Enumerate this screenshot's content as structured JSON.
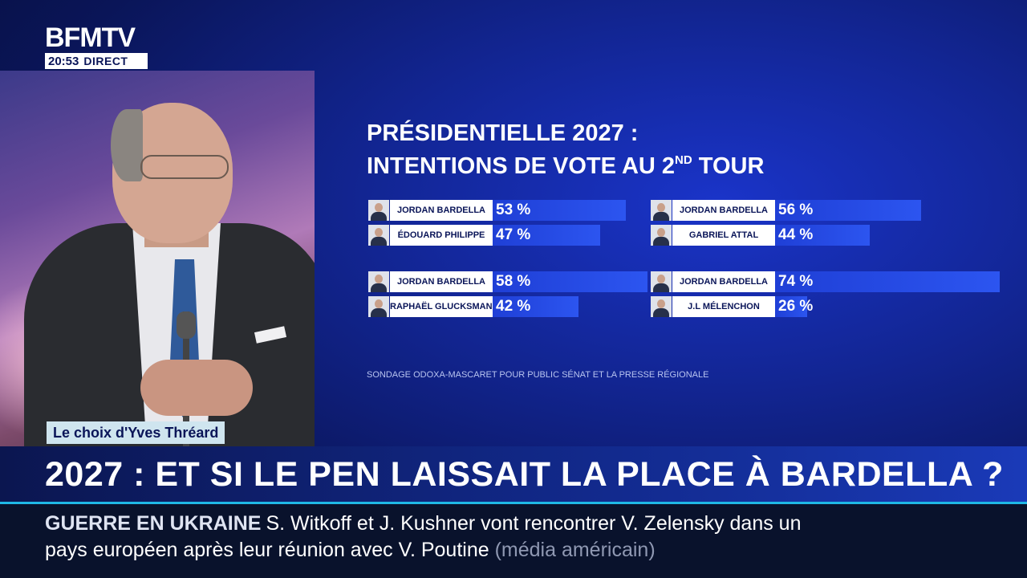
{
  "channel": {
    "name": "BFMTV",
    "time": "20:53",
    "live_label": "DIRECT"
  },
  "camera": {
    "label": "Le choix d'Yves Thréard"
  },
  "chart_data": {
    "type": "bar",
    "title_line1": "PRÉSIDENTIELLE 2027 :",
    "title_line2_pre": "INTENTIONS DE VOTE AU 2",
    "title_line2_sup": "ND",
    "title_line2_post": " TOUR",
    "source": "SONDAGE ODOXA-MASCARET POUR PUBLIC SÉNAT ET LA PRESSE RÉGIONALE",
    "xlim": [
      0,
      100
    ],
    "matchups": [
      {
        "candidates": [
          {
            "name": "JORDAN BARDELLA",
            "value": 53,
            "label": "53 %"
          },
          {
            "name": "ÉDOUARD PHILIPPE",
            "value": 47,
            "label": "47 %"
          }
        ]
      },
      {
        "candidates": [
          {
            "name": "JORDAN BARDELLA",
            "value": 56,
            "label": "56 %"
          },
          {
            "name": "GABRIEL ATTAL",
            "value": 44,
            "label": "44 %"
          }
        ]
      },
      {
        "candidates": [
          {
            "name": "JORDAN BARDELLA",
            "value": 58,
            "label": "58 %"
          },
          {
            "name": "RAPHAËL GLUCKSMANN",
            "value": 42,
            "label": "42 %"
          }
        ]
      },
      {
        "candidates": [
          {
            "name": "JORDAN BARDELLA",
            "value": 74,
            "label": "74 %"
          },
          {
            "name": "J.L MÉLENCHON",
            "value": 26,
            "label": "26 %"
          }
        ]
      }
    ]
  },
  "headline": {
    "text": "2027 : ET SI LE PEN LAISSAIT LA PLACE À BARDELLA ?"
  },
  "ticker": {
    "tag": "GUERRE EN UKRAINE",
    "text": "S. Witkoff et J. Kushner vont rencontrer V. Zelensky dans un pays européen après leur réunion avec V. Poutine",
    "source": "(média américain)"
  },
  "colors": {
    "accent": "#1fb8e6",
    "bar": "#2c55f0",
    "background": "#122592"
  }
}
